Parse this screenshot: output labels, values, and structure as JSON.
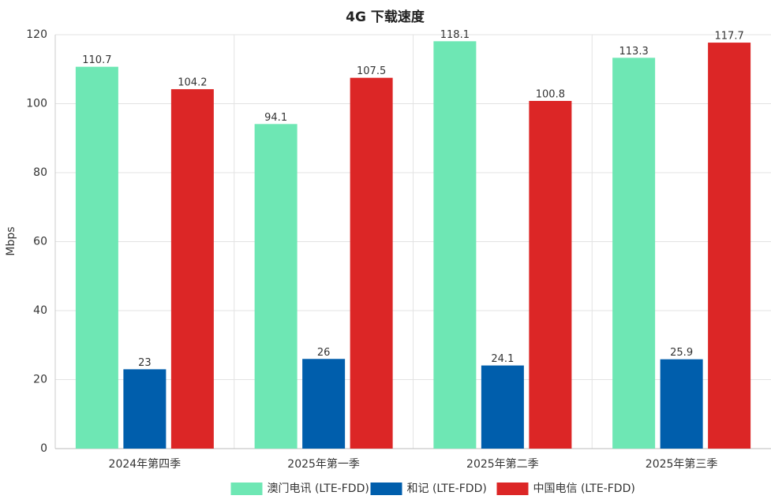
{
  "chart_data": {
    "type": "bar",
    "title": "4G 下载速度",
    "y_label": "Mbps",
    "categories": [
      "2024年第四季",
      "2025年第一季",
      "2025年第二季",
      "2025年第三季"
    ],
    "series": [
      {
        "name": "澳门电讯 (LTE-FDD)",
        "color": "#6ee7b4",
        "values": [
          110.7,
          94.1,
          118.1,
          113.3
        ]
      },
      {
        "name": "和记 (LTE-FDD)",
        "color": "#005eac",
        "values": [
          23,
          26,
          24.1,
          25.9
        ]
      },
      {
        "name": "中国电信 (LTE-FDD)",
        "color": "#dc2626",
        "values": [
          104.2,
          107.5,
          100.8,
          117.7
        ]
      }
    ],
    "ylim": [
      0,
      120
    ],
    "yticks": [
      0,
      20,
      40,
      60,
      80,
      100,
      120
    ],
    "grid": true,
    "legend": "bottom"
  }
}
